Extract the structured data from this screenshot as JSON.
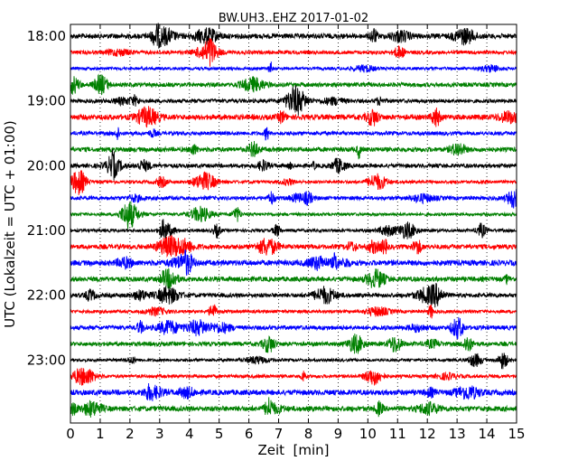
{
  "chart_data": {
    "type": "line",
    "title": "BW.UH3..EHZ 2017-01-02",
    "xlabel": "Zeit  [min]",
    "ylabel": "UTC (Lokalzeit = UTC + 01:00)",
    "xlim": [
      0,
      15
    ],
    "xticks": [
      "0",
      "1",
      "2",
      "3",
      "4",
      "5",
      "6",
      "7",
      "8",
      "9",
      "10",
      "11",
      "12",
      "13",
      "14",
      "15"
    ],
    "yticks": [
      "18:00",
      "19:00",
      "20:00",
      "21:00",
      "22:00",
      "23:00"
    ],
    "grid": "vertical dotted lines at each minute",
    "colors": [
      "#000000",
      "#ff0000",
      "#0000ff",
      "#008000"
    ],
    "series": [
      {
        "label": "18:00",
        "color": "#000000"
      },
      {
        "label": "18:15",
        "color": "#ff0000"
      },
      {
        "label": "18:30",
        "color": "#0000ff"
      },
      {
        "label": "18:45",
        "color": "#008000"
      },
      {
        "label": "19:00",
        "color": "#000000"
      },
      {
        "label": "19:15",
        "color": "#ff0000"
      },
      {
        "label": "19:30",
        "color": "#0000ff"
      },
      {
        "label": "19:45",
        "color": "#008000"
      },
      {
        "label": "20:00",
        "color": "#000000"
      },
      {
        "label": "20:15",
        "color": "#ff0000"
      },
      {
        "label": "20:30",
        "color": "#0000ff"
      },
      {
        "label": "20:45",
        "color": "#008000"
      },
      {
        "label": "21:00",
        "color": "#000000"
      },
      {
        "label": "21:15",
        "color": "#ff0000"
      },
      {
        "label": "21:30",
        "color": "#0000ff"
      },
      {
        "label": "21:45",
        "color": "#008000"
      },
      {
        "label": "22:00",
        "color": "#000000"
      },
      {
        "label": "22:15",
        "color": "#ff0000"
      },
      {
        "label": "22:30",
        "color": "#0000ff"
      },
      {
        "label": "22:45",
        "color": "#008000"
      },
      {
        "label": "23:00",
        "color": "#000000"
      },
      {
        "label": "23:15",
        "color": "#ff0000"
      },
      {
        "label": "23:30",
        "color": "#0000ff"
      },
      {
        "label": "23:45",
        "color": "#008000"
      }
    ]
  }
}
